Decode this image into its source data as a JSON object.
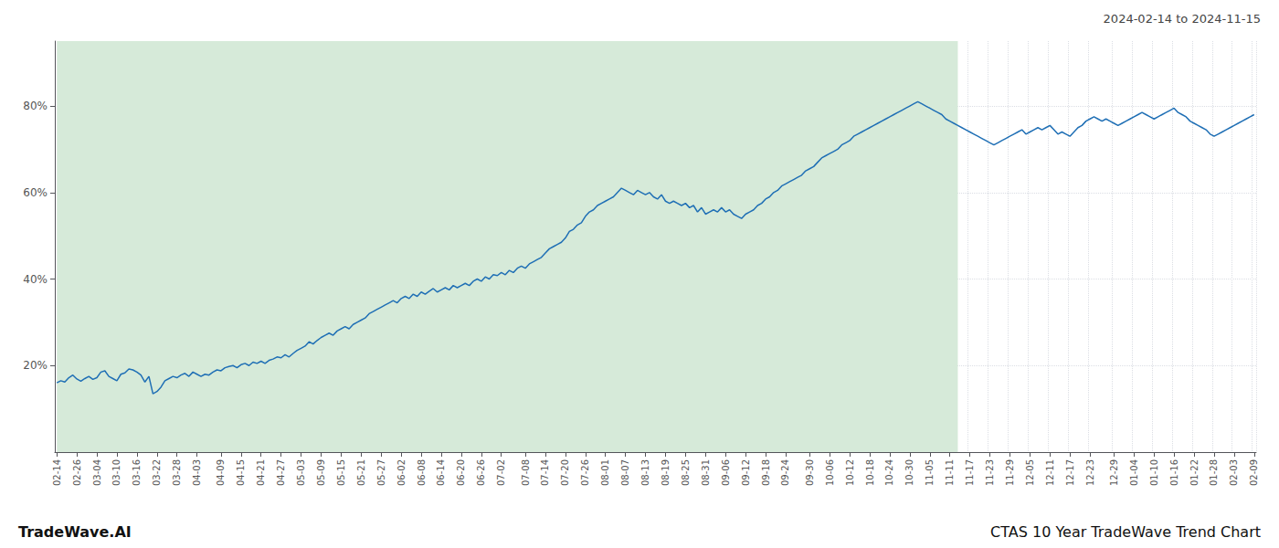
{
  "chart_data": {
    "type": "line",
    "title": "CTAS 10 Year TradeWave Trend Chart",
    "subtitle": "2024-02-14 to 2024-11-15",
    "annotations": [
      "TradeWave.AI"
    ],
    "color": "#1f6fb5",
    "grid": true,
    "ylim": [
      0,
      95
    ],
    "yticks": [
      {
        "value": 20,
        "label": "20%"
      },
      {
        "value": 40,
        "label": "40%"
      },
      {
        "value": 60,
        "label": "60%"
      },
      {
        "value": 80,
        "label": "80%"
      }
    ],
    "shade": {
      "x": [
        0,
        224.848
      ],
      "color": "#d6ead9"
    },
    "categories": [
      "02-14",
      null,
      null,
      null,
      null,
      "02-26",
      null,
      null,
      null,
      null,
      "03-04",
      null,
      null,
      null,
      null,
      "03-10",
      null,
      null,
      null,
      null,
      "03-16",
      null,
      null,
      null,
      null,
      "03-22",
      null,
      null,
      null,
      null,
      "03-28",
      null,
      null,
      null,
      null,
      "04-03",
      null,
      null,
      null,
      null,
      null,
      "04-09",
      null,
      null,
      null,
      null,
      "04-15",
      null,
      null,
      null,
      null,
      "04-21",
      null,
      null,
      null,
      null,
      "04-27",
      null,
      null,
      null,
      null,
      "05-03",
      null,
      null,
      null,
      null,
      "05-09",
      null,
      null,
      null,
      null,
      "05-15",
      null,
      null,
      null,
      null,
      "05-21",
      null,
      null,
      null,
      null,
      "05-27",
      null,
      null,
      null,
      null,
      "06-02",
      null,
      null,
      null,
      null,
      "06-08",
      null,
      null,
      null,
      null,
      "06-14",
      null,
      null,
      null,
      null,
      "06-20",
      null,
      null,
      null,
      null,
      "06-26",
      null,
      null,
      null,
      null,
      "07-02",
      null,
      null,
      null,
      null,
      null,
      "07-08",
      null,
      null,
      null,
      null,
      "07-14",
      null,
      null,
      null,
      null,
      "07-20",
      null,
      null,
      null,
      null,
      "07-26",
      null,
      null,
      null,
      null,
      "08-01",
      null,
      null,
      null,
      null,
      "08-07",
      null,
      null,
      null,
      null,
      "08-13",
      null,
      null,
      null,
      null,
      "08-19",
      null,
      null,
      null,
      null,
      "08-25",
      null,
      null,
      null,
      null,
      "08-31",
      null,
      null,
      null,
      null,
      "09-06",
      null,
      null,
      null,
      null,
      "09-12",
      null,
      null,
      null,
      null,
      "09-18",
      null,
      null,
      null,
      null,
      "09-24",
      null,
      null,
      null,
      null,
      null,
      "09-30",
      null,
      null,
      null,
      null,
      "10-06",
      null,
      null,
      null,
      null,
      "10-12",
      null,
      null,
      null,
      null,
      "10-18",
      null,
      null,
      null,
      null,
      "10-24",
      null,
      null,
      null,
      null,
      "10-30",
      null,
      null,
      null,
      null,
      "11-05",
      null,
      null,
      null,
      null,
      "11-11",
      null,
      null,
      null,
      null,
      "11-17",
      null,
      null,
      null,
      null,
      "11-23",
      null,
      null,
      null,
      null,
      "11-29",
      null,
      null,
      null,
      null,
      "12-05",
      null,
      null,
      null,
      null,
      "12-11",
      null,
      null,
      null,
      null,
      "12-17",
      null,
      null,
      null,
      null,
      "12-23",
      null,
      null,
      null,
      null,
      null,
      "12-29",
      null,
      null,
      null,
      null,
      "01-04",
      null,
      null,
      null,
      null,
      "01-10",
      null,
      null,
      null,
      null,
      "01-16",
      null,
      null,
      null,
      null,
      "01-22",
      null,
      null,
      null,
      null,
      "01-28",
      null,
      null,
      null,
      null,
      "02-03",
      null,
      null,
      null,
      null,
      "02-09"
    ],
    "values": [
      16.0,
      16.5,
      16.2,
      17.2,
      17.8,
      16.9,
      16.4,
      17.0,
      17.5,
      16.8,
      17.2,
      18.5,
      18.8,
      17.5,
      17.0,
      16.5,
      18.0,
      18.3,
      19.2,
      19.0,
      18.5,
      17.8,
      16.2,
      17.5,
      13.5,
      14.0,
      15.0,
      16.5,
      17.0,
      17.5,
      17.2,
      17.8,
      18.2,
      17.5,
      18.5,
      18.0,
      17.5,
      18.0,
      17.8,
      18.5,
      19.0,
      18.8,
      19.5,
      19.8,
      20.0,
      19.5,
      20.2,
      20.5,
      20.0,
      20.8,
      20.5,
      21.0,
      20.5,
      21.2,
      21.5,
      22.0,
      21.8,
      22.5,
      22.0,
      22.8,
      23.5,
      24.0,
      24.5,
      25.5,
      25.0,
      25.8,
      26.5,
      27.0,
      27.5,
      27.0,
      28.0,
      28.5,
      29.0,
      28.5,
      29.5,
      30.0,
      30.5,
      31.0,
      32.0,
      32.5,
      33.0,
      33.5,
      34.0,
      34.5,
      35.0,
      34.5,
      35.5,
      36.0,
      35.5,
      36.5,
      36.0,
      37.0,
      36.5,
      37.2,
      37.8,
      37.0,
      37.5,
      38.0,
      37.5,
      38.5,
      38.0,
      38.5,
      39.0,
      38.5,
      39.5,
      40.0,
      39.5,
      40.5,
      40.0,
      41.0,
      40.8,
      41.5,
      41.0,
      42.0,
      41.5,
      42.5,
      43.0,
      42.5,
      43.5,
      44.0,
      44.5,
      45.0,
      46.0,
      47.0,
      47.5,
      48.0,
      48.5,
      49.5,
      51.0,
      51.5,
      52.5,
      53.0,
      54.5,
      55.5,
      56.0,
      57.0,
      57.5,
      58.0,
      58.5,
      59.0,
      60.0,
      61.0,
      60.5,
      60.0,
      59.5,
      60.5,
      60.0,
      59.5,
      60.0,
      59.0,
      58.5,
      59.5,
      58.0,
      57.5,
      58.0,
      57.5,
      57.0,
      57.5,
      56.5,
      57.0,
      55.5,
      56.5,
      55.0,
      55.5,
      56.0,
      55.5,
      56.5,
      55.5,
      56.0,
      55.0,
      54.5,
      54.0,
      55.0,
      55.5,
      56.0,
      57.0,
      57.5,
      58.5,
      59.0,
      60.0,
      60.5,
      61.5,
      62.0,
      62.5,
      63.0,
      63.5,
      64.0,
      65.0,
      65.5,
      66.0,
      67.0,
      68.0,
      68.5,
      69.0,
      69.5,
      70.0,
      71.0,
      71.5,
      72.0,
      73.0,
      73.5,
      74.0,
      74.5,
      75.0,
      75.5,
      76.0,
      76.5,
      77.0,
      77.5,
      78.0,
      78.5,
      79.0,
      79.5,
      80.0,
      80.5,
      81.0,
      80.5,
      80.0,
      79.5,
      79.0,
      78.5,
      78.0,
      77.0,
      76.5,
      76.0,
      75.5,
      75.0,
      74.5,
      74.0,
      73.5,
      73.0,
      72.5,
      72.0,
      71.5,
      71.0,
      71.5,
      72.0,
      72.5,
      73.0,
      73.5,
      74.0,
      74.5,
      73.5,
      74.0,
      74.5,
      75.0,
      74.5,
      75.0,
      75.5,
      74.5,
      73.5,
      74.0,
      73.5,
      73.0,
      74.0,
      75.0,
      75.5,
      76.5,
      77.0,
      77.5,
      77.0,
      76.5,
      77.0,
      76.5,
      76.0,
      75.5,
      76.0,
      76.5,
      77.0,
      77.5,
      78.0,
      78.5,
      78.0,
      77.5,
      77.0,
      77.5,
      78.0,
      78.5,
      79.0,
      79.5,
      78.5,
      78.0,
      77.5,
      76.5,
      76.0,
      75.5,
      75.0,
      74.5,
      73.5,
      73.0,
      73.5,
      74.0,
      74.5,
      75.0,
      75.5,
      76.0,
      76.5,
      77.0,
      77.5,
      78.0
    ]
  }
}
